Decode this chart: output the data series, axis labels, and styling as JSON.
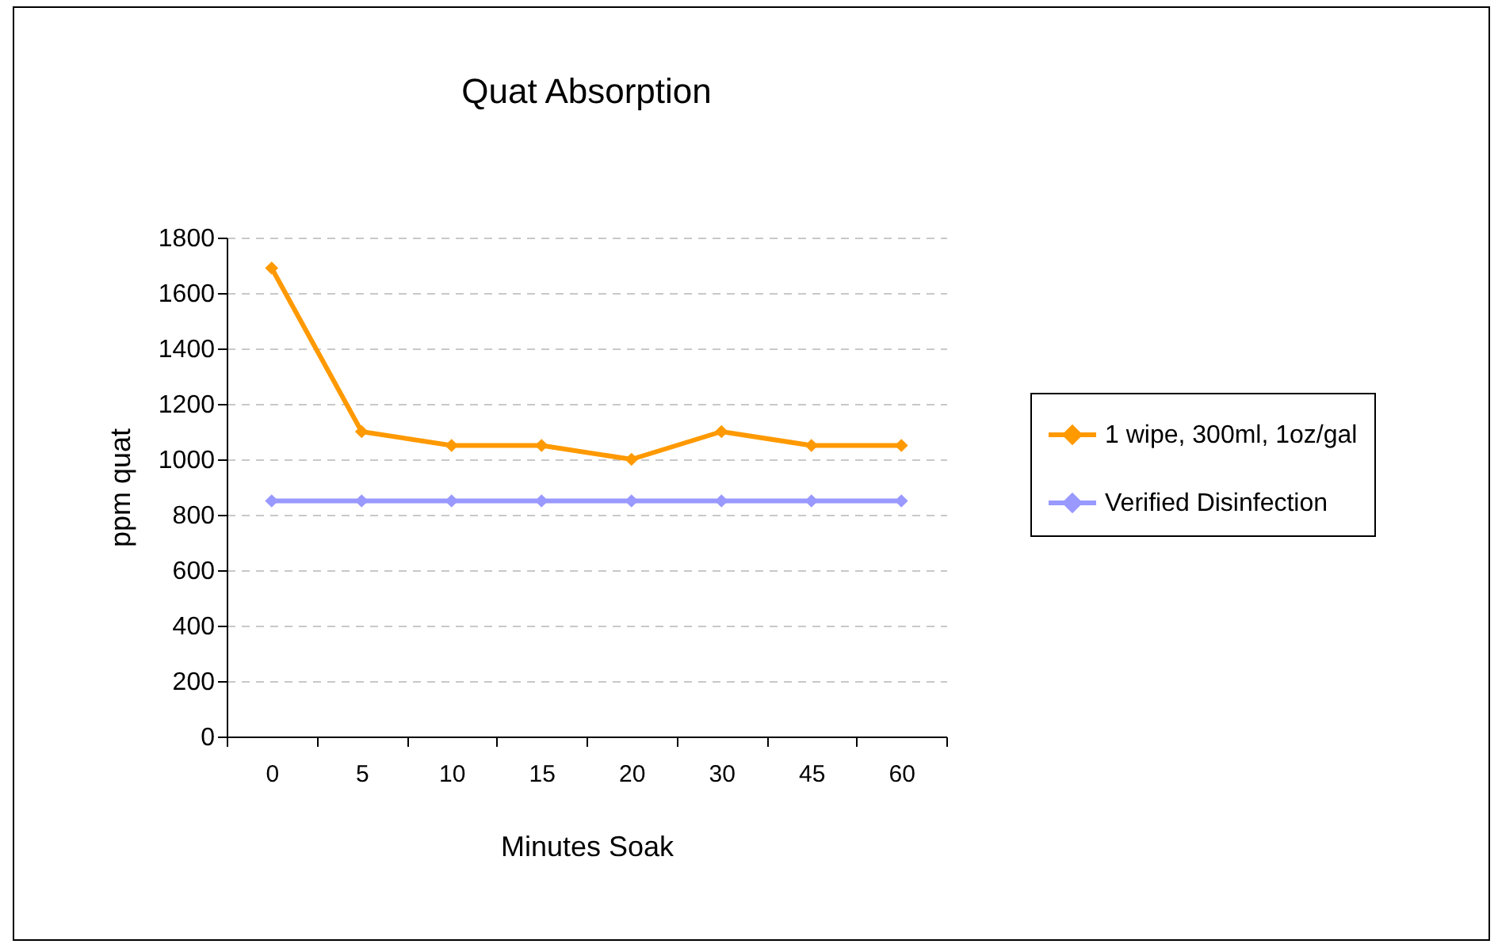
{
  "chart_data": {
    "type": "line",
    "title": "Quat Absorption",
    "xlabel": "Minutes Soak",
    "ylabel": "ppm quat",
    "categories": [
      "0",
      "5",
      "10",
      "15",
      "20",
      "30",
      "45",
      "60"
    ],
    "series": [
      {
        "name": "1 wipe, 300ml, 1oz/gal",
        "color": "#ff9900",
        "values": [
          1690,
          1100,
          1050,
          1050,
          1000,
          1100,
          1050,
          1050
        ]
      },
      {
        "name": "Verified Disinfection",
        "color": "#9999ff",
        "values": [
          850,
          850,
          850,
          850,
          850,
          850,
          850,
          850
        ]
      }
    ],
    "ylim": [
      0,
      1800
    ],
    "yticks": [
      0,
      200,
      400,
      600,
      800,
      1000,
      1200,
      1400,
      1600,
      1800
    ],
    "grid": "y",
    "legend": "right",
    "marker": "diamond",
    "line_style": "solid"
  }
}
